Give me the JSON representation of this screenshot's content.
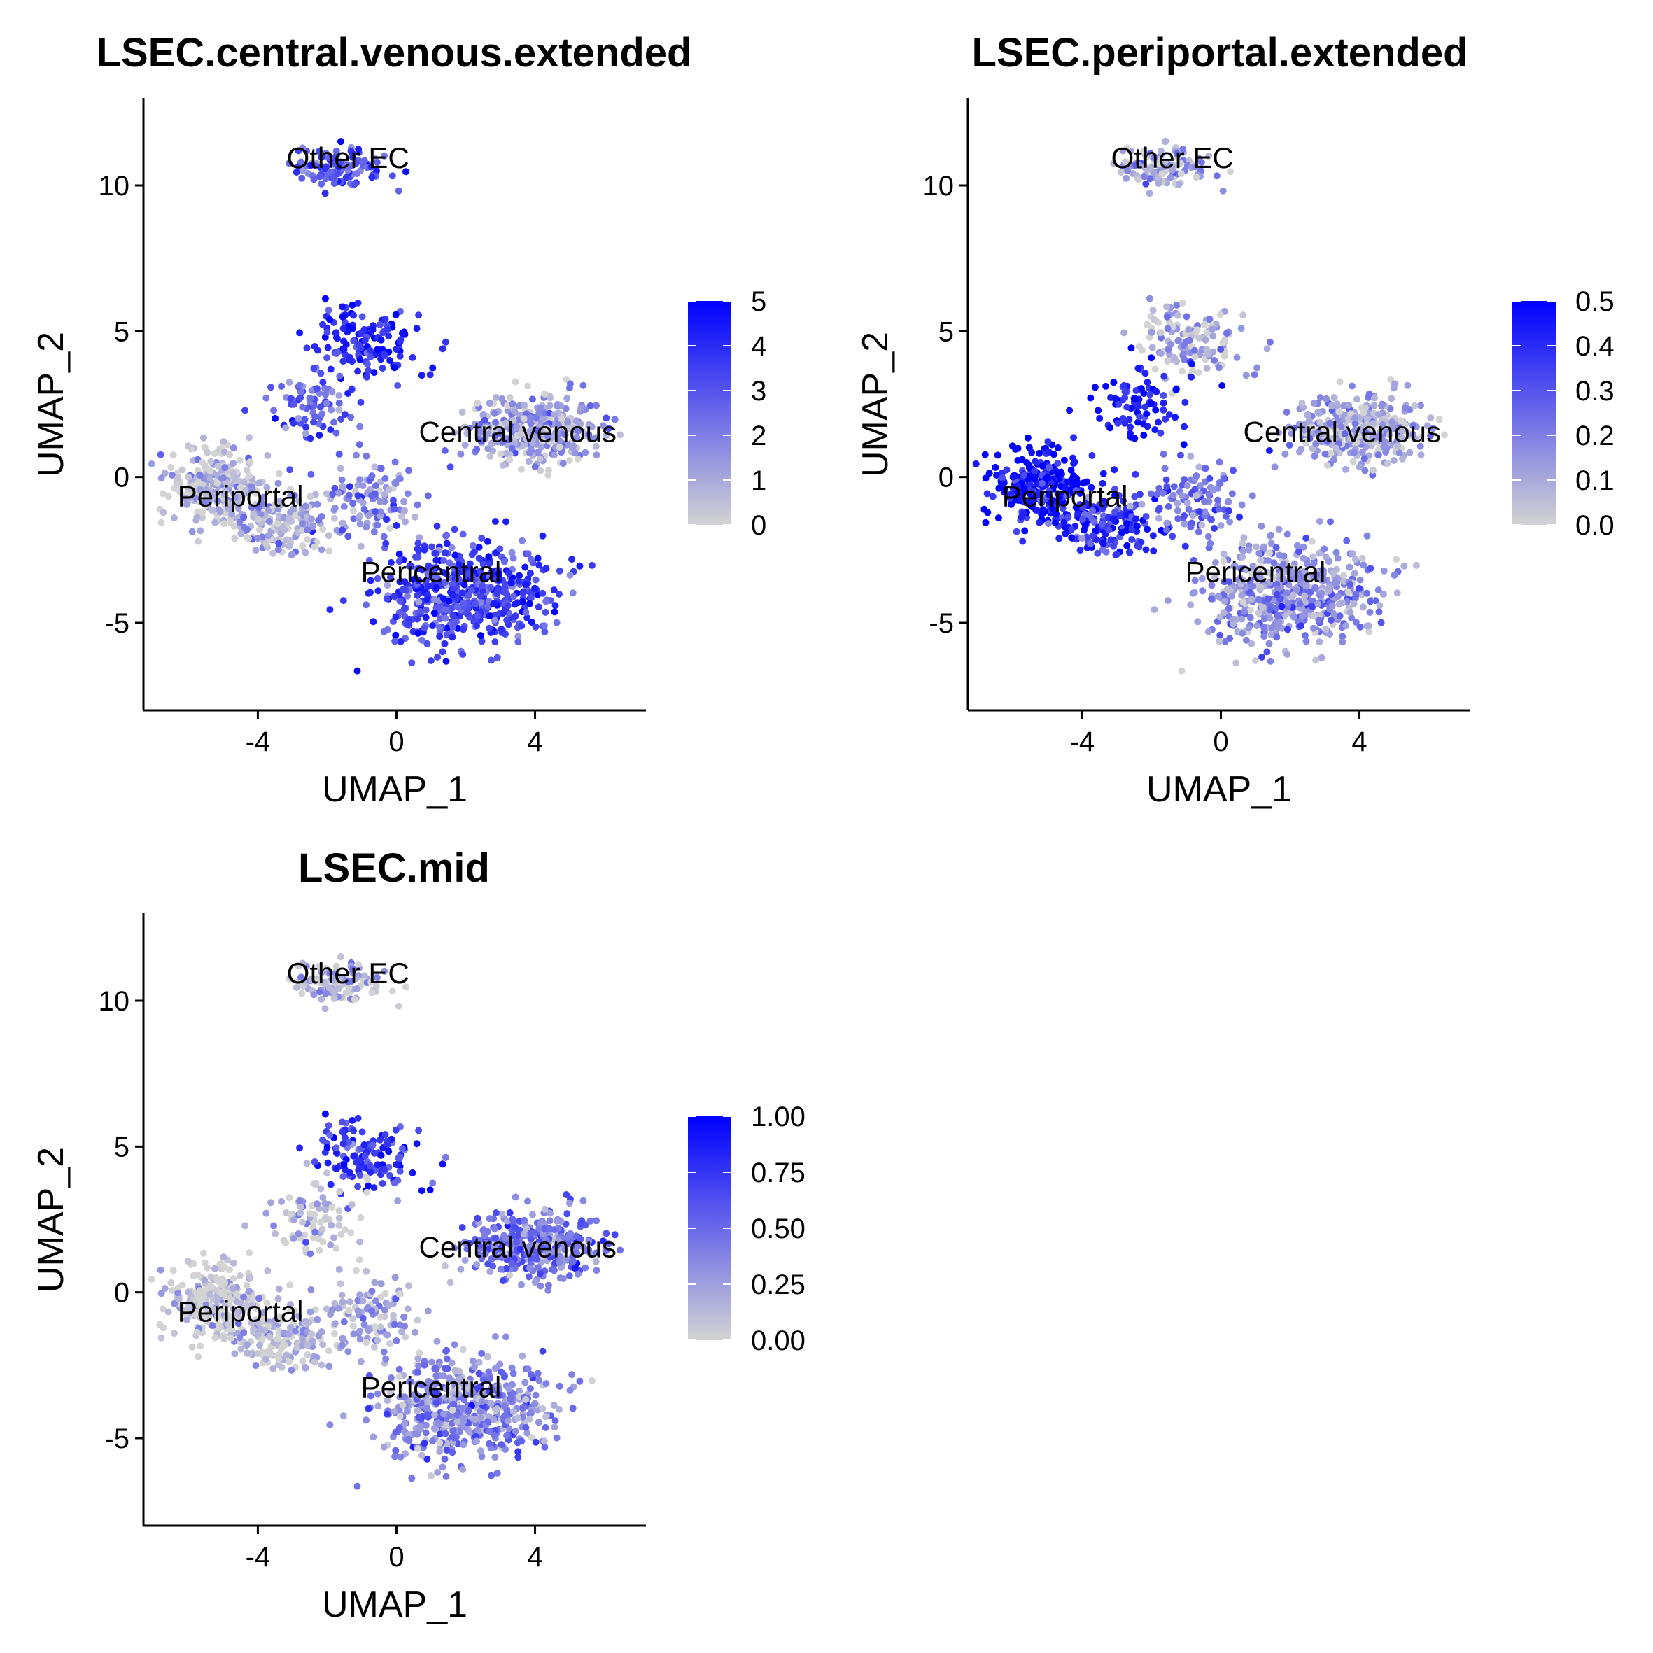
{
  "chart_data": [
    {
      "type": "scatter",
      "title": "LSEC.central.venous.extended",
      "xlabel": "UMAP_1",
      "ylabel": "UMAP_2",
      "xlim": [
        -7.3,
        7.2
      ],
      "ylim": [
        -8,
        13
      ],
      "x_ticks": [
        "-4",
        "0",
        "4"
      ],
      "y_ticks": [
        "-5",
        "0",
        "5",
        "10"
      ],
      "color_scale": {
        "low": "#d3d3d3",
        "high": "#0000ff",
        "min": 0,
        "max": 5,
        "ticks": [
          "0",
          "1",
          "2",
          "3",
          "4",
          "5"
        ]
      },
      "legend_position": "right",
      "clusters": [
        {
          "label": "Other EC",
          "x": -1.4,
          "y": 10.6,
          "value_mean": 3.2
        },
        {
          "label": "Central venous",
          "x": 3.5,
          "y": 1.2,
          "value_mean": 4.3
        },
        {
          "label": "Periportal",
          "x": -4.5,
          "y": -1.0,
          "value_mean": 0.6
        },
        {
          "label": "Pericentral",
          "x": 1.0,
          "y": -3.6,
          "value_mean": 3.6
        }
      ]
    },
    {
      "type": "scatter",
      "title": "LSEC.periportal.extended",
      "xlabel": "UMAP_1",
      "ylabel": "UMAP_2",
      "xlim": [
        -7.3,
        7.2
      ],
      "ylim": [
        -8,
        13
      ],
      "x_ticks": [
        "-4",
        "0",
        "4"
      ],
      "y_ticks": [
        "-5",
        "0",
        "5",
        "10"
      ],
      "color_scale": {
        "low": "#d3d3d3",
        "high": "#0000ff",
        "min": 0,
        "max": 0.5,
        "ticks": [
          "0.0",
          "0.1",
          "0.2",
          "0.3",
          "0.4",
          "0.5"
        ]
      },
      "legend_position": "right",
      "clusters": [
        {
          "label": "Other EC",
          "x": -1.4,
          "y": 10.6,
          "value_mean": 0.1
        },
        {
          "label": "Central venous",
          "x": 3.5,
          "y": 1.2,
          "value_mean": 0.12
        },
        {
          "label": "Periportal",
          "x": -4.5,
          "y": -1.0,
          "value_mean": 0.45
        },
        {
          "label": "Pericentral",
          "x": 1.0,
          "y": -3.6,
          "value_mean": 0.18
        }
      ]
    },
    {
      "type": "scatter",
      "title": "LSEC.mid",
      "xlabel": "UMAP_1",
      "ylabel": "UMAP_2",
      "xlim": [
        -7.3,
        7.2
      ],
      "ylim": [
        -8,
        13
      ],
      "x_ticks": [
        "-4",
        "0",
        "4"
      ],
      "y_ticks": [
        "-5",
        "0",
        "5",
        "10"
      ],
      "color_scale": {
        "low": "#d3d3d3",
        "high": "#0000ff",
        "min": 0,
        "max": 1,
        "ticks": [
          "0.00",
          "0.25",
          "0.50",
          "0.75",
          "1.00"
        ]
      },
      "legend_position": "right",
      "clusters": [
        {
          "label": "Other EC",
          "x": -1.4,
          "y": 10.6,
          "value_mean": 0.15
        },
        {
          "label": "Central venous",
          "x": 3.5,
          "y": 1.2,
          "value_mean": 0.75
        },
        {
          "label": "Periportal",
          "x": -4.5,
          "y": -1.0,
          "value_mean": 0.05
        },
        {
          "label": "Pericentral",
          "x": 1.0,
          "y": -3.6,
          "value_mean": 0.45
        }
      ]
    }
  ]
}
